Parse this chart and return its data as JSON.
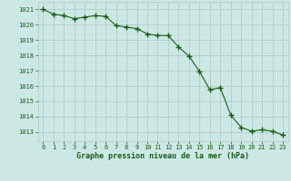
{
  "x": [
    0,
    1,
    2,
    3,
    4,
    5,
    6,
    7,
    8,
    9,
    10,
    11,
    12,
    13,
    14,
    15,
    16,
    17,
    18,
    19,
    20,
    21,
    22,
    23
  ],
  "y": [
    1021.0,
    1020.7,
    1020.6,
    1020.4,
    1020.5,
    1020.6,
    1020.55,
    1019.95,
    1019.85,
    1019.75,
    1019.4,
    1019.3,
    1019.3,
    1018.55,
    1017.95,
    1016.95,
    1015.75,
    1015.9,
    1014.1,
    1013.3,
    1013.05,
    1013.15,
    1013.05,
    1012.8
  ],
  "bg_color": "#cce8e4",
  "line_color": "#1a5c1a",
  "marker_color": "#1a5c1a",
  "grid_color": "#b0c8c4",
  "xlabel": "Graphe pression niveau de la mer (hPa)",
  "xlabel_color": "#1a5c1a",
  "ylabel_ticks": [
    1013,
    1014,
    1015,
    1016,
    1017,
    1018,
    1019,
    1020,
    1021
  ],
  "ylim": [
    1012.4,
    1021.5
  ],
  "xlim": [
    -0.5,
    23.5
  ],
  "tick_label_color": "#1a5c1a"
}
